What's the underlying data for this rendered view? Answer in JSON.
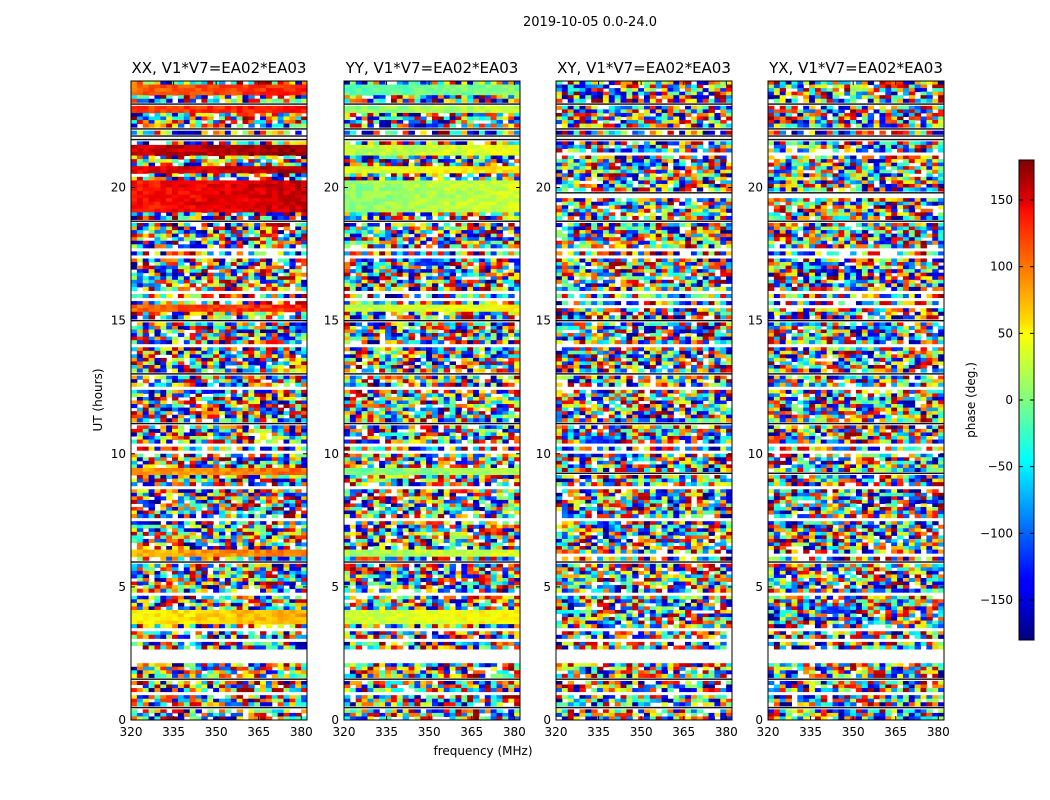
{
  "figure": {
    "suptitle": "2019-10-05 0.0-24.0"
  },
  "chart_data": {
    "type": "heatmap",
    "xlabel": "frequency (MHz)",
    "ylabel": "UT (hours)",
    "xlim": [
      320,
      382
    ],
    "ylim": [
      0,
      24
    ],
    "xticks": [
      "320",
      "335",
      "350",
      "365",
      "380"
    ],
    "yticks": [
      "0",
      "5",
      "10",
      "15",
      "20"
    ],
    "colorbar": {
      "label": "phase (deg.)",
      "range": [
        -180,
        180
      ],
      "ticks": [
        "150",
        "100",
        "50",
        "0",
        "−50",
        "−100",
        "−150"
      ],
      "tick_values": [
        150,
        100,
        50,
        0,
        -50,
        -100,
        -150
      ],
      "colormap": "jet"
    },
    "panels": [
      {
        "title": "XX, V1*V7=EA02*EA03",
        "polarization": "XX",
        "coherent_bands": [
          [
            3.6,
            4.2,
            60
          ],
          [
            6.2,
            6.4,
            80
          ],
          [
            9.2,
            9.5,
            85
          ],
          [
            15.3,
            15.6,
            110
          ],
          [
            19.1,
            20.3,
            140
          ],
          [
            20.5,
            20.8,
            150
          ],
          [
            21.2,
            21.6,
            160
          ],
          [
            22.8,
            23.0,
            120
          ],
          [
            23.5,
            23.8,
            110
          ]
        ]
      },
      {
        "title": "YY, V1*V7=EA02*EA03",
        "polarization": "YY",
        "coherent_bands": [
          [
            3.6,
            4.2,
            35
          ],
          [
            6.2,
            6.4,
            20
          ],
          [
            9.2,
            9.5,
            5
          ],
          [
            15.3,
            15.6,
            30
          ],
          [
            19.1,
            20.3,
            15
          ],
          [
            20.5,
            20.8,
            40
          ],
          [
            21.2,
            21.6,
            25
          ],
          [
            22.8,
            23.0,
            10
          ],
          [
            23.5,
            23.8,
            -10
          ]
        ]
      },
      {
        "title": "XY, V1*V7=EA02*EA03",
        "polarization": "XY",
        "coherent_bands": []
      },
      {
        "title": "YX, V1*V7=EA02*EA03",
        "polarization": "YX",
        "coherent_bands": []
      }
    ],
    "grid": false
  }
}
